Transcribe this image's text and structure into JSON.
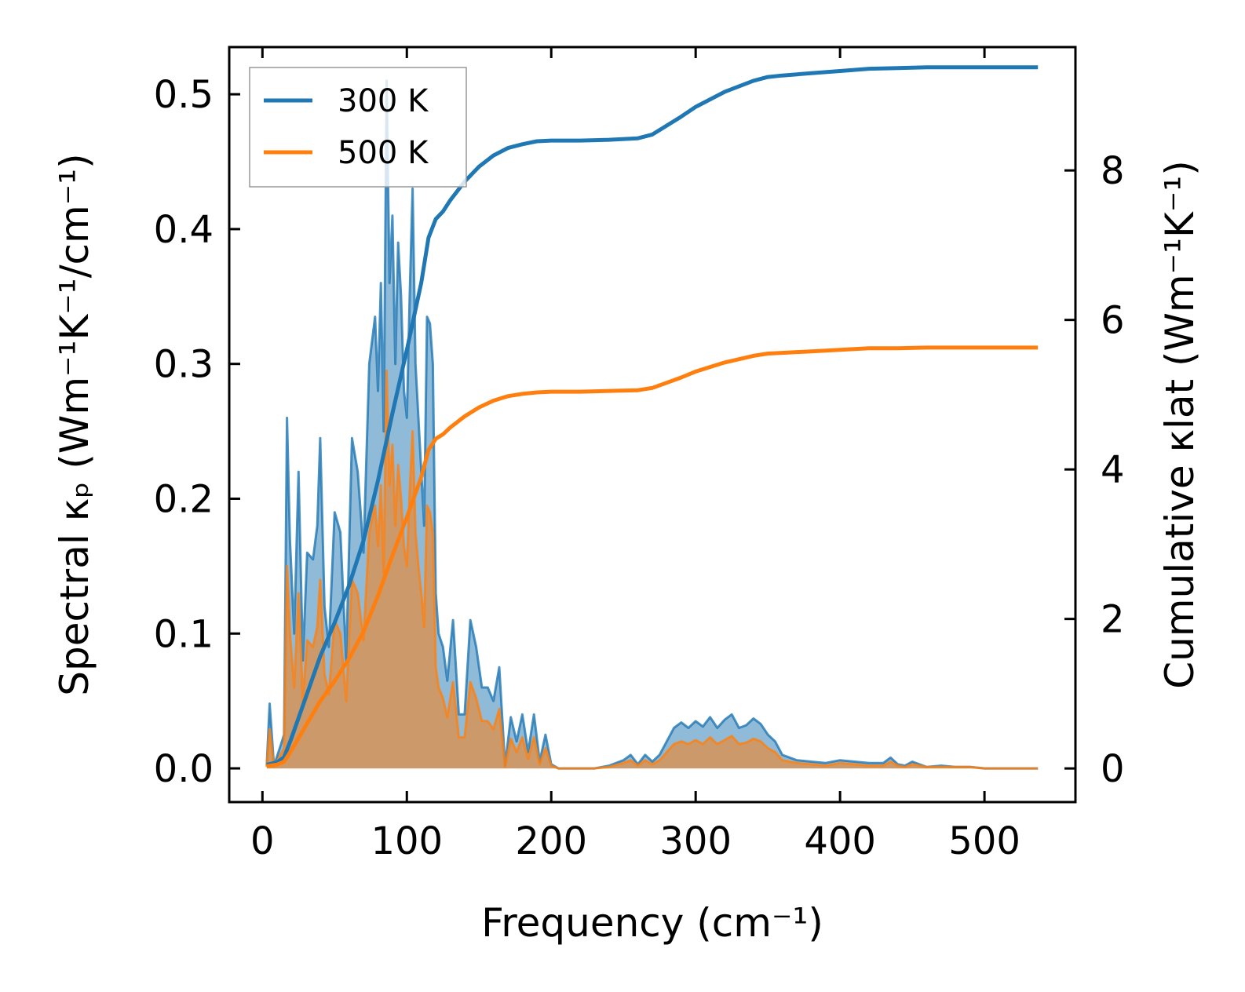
{
  "chart_data": {
    "type": "line",
    "xlabel": "Frequency (cm⁻¹)",
    "ylabel_left": "Spectral κₚ (Wm⁻¹K⁻¹/cm⁻¹)",
    "ylabel_right": "Cumulative κlat (Wm⁻¹K⁻¹)",
    "xlim": [
      -23,
      563
    ],
    "ylim_left": [
      -0.025,
      0.535
    ],
    "ylim_right": [
      -0.45,
      9.65
    ],
    "x_ticks": [
      0,
      100,
      200,
      300,
      400,
      500
    ],
    "x_tick_labels": [
      "0",
      "100",
      "200",
      "300",
      "400",
      "500"
    ],
    "y_left_ticks": [
      0.0,
      0.1,
      0.2,
      0.3,
      0.4,
      0.5
    ],
    "y_left_tick_labels": [
      "0.0",
      "0.1",
      "0.2",
      "0.3",
      "0.4",
      "0.5"
    ],
    "y_right_ticks": [
      0,
      2,
      4,
      6,
      8
    ],
    "y_right_tick_labels": [
      "0",
      "2",
      "4",
      "6",
      "8"
    ],
    "legend": {
      "position": "upper-left",
      "entries": [
        {
          "label": "300 K",
          "color": "#1f77b4"
        },
        {
          "label": "500 K",
          "color": "#ff7f0e"
        }
      ]
    },
    "series": [
      {
        "name": "300 K",
        "color": "#1f77b4",
        "spectral": {
          "x": [
            3,
            5,
            8,
            12,
            15,
            17,
            19,
            22,
            25,
            28,
            31,
            35,
            38,
            40,
            43,
            46,
            50,
            54,
            58,
            62,
            66,
            70,
            74,
            78,
            80,
            82,
            84,
            86,
            88,
            90,
            92,
            94,
            96,
            98,
            100,
            102,
            104,
            106,
            108,
            110,
            112,
            114,
            116,
            118,
            120,
            122,
            125,
            128,
            132,
            136,
            140,
            144,
            148,
            152,
            156,
            160,
            164,
            168,
            172,
            176,
            180,
            184,
            188,
            192,
            196,
            200,
            205,
            210,
            220,
            230,
            240,
            250,
            255,
            260,
            265,
            270,
            275,
            280,
            285,
            290,
            295,
            300,
            305,
            310,
            315,
            320,
            325,
            330,
            335,
            340,
            345,
            350,
            355,
            360,
            365,
            370,
            380,
            390,
            400,
            410,
            420,
            430,
            435,
            440,
            445,
            450,
            460,
            470,
            480,
            490,
            500,
            510,
            520,
            530,
            537
          ],
          "y": [
            0.002,
            0.048,
            0.002,
            0.015,
            0.025,
            0.26,
            0.17,
            0.1,
            0.22,
            0.08,
            0.16,
            0.155,
            0.18,
            0.245,
            0.12,
            0.09,
            0.19,
            0.175,
            0.08,
            0.245,
            0.22,
            0.16,
            0.3,
            0.335,
            0.28,
            0.36,
            0.25,
            0.51,
            0.36,
            0.41,
            0.3,
            0.39,
            0.35,
            0.28,
            0.26,
            0.35,
            0.43,
            0.3,
            0.26,
            0.22,
            0.18,
            0.335,
            0.33,
            0.3,
            0.13,
            0.1,
            0.09,
            0.065,
            0.11,
            0.04,
            0.04,
            0.11,
            0.09,
            0.06,
            0.06,
            0.05,
            0.075,
            0.002,
            0.038,
            0.02,
            0.04,
            0.012,
            0.04,
            0.005,
            0.025,
            0.003,
            0.0,
            0.0,
            0.0,
            0.0,
            0.002,
            0.006,
            0.01,
            0.003,
            0.01,
            0.005,
            0.01,
            0.02,
            0.03,
            0.034,
            0.03,
            0.035,
            0.031,
            0.038,
            0.03,
            0.036,
            0.04,
            0.03,
            0.032,
            0.037,
            0.033,
            0.025,
            0.02,
            0.01,
            0.008,
            0.006,
            0.005,
            0.004,
            0.006,
            0.005,
            0.004,
            0.004,
            0.008,
            0.003,
            0.002,
            0.005,
            0.001,
            0.002,
            0.001,
            0.001,
            0.0,
            0.0,
            0.0,
            0.0,
            0.0
          ]
        },
        "cumulative": {
          "x": [
            3,
            10,
            15,
            20,
            30,
            40,
            50,
            60,
            70,
            80,
            90,
            100,
            110,
            115,
            120,
            125,
            130,
            140,
            150,
            160,
            170,
            180,
            190,
            200,
            220,
            240,
            260,
            270,
            280,
            290,
            300,
            320,
            340,
            350,
            360,
            380,
            400,
            420,
            440,
            460,
            480,
            500,
            537
          ],
          "y": [
            0.05,
            0.08,
            0.15,
            0.4,
            0.95,
            1.5,
            1.95,
            2.45,
            3.05,
            3.85,
            4.75,
            5.6,
            6.5,
            7.1,
            7.35,
            7.45,
            7.6,
            7.85,
            8.05,
            8.2,
            8.3,
            8.35,
            8.39,
            8.4,
            8.4,
            8.41,
            8.43,
            8.48,
            8.6,
            8.72,
            8.85,
            9.05,
            9.2,
            9.25,
            9.27,
            9.3,
            9.33,
            9.36,
            9.37,
            9.38,
            9.38,
            9.38,
            9.38
          ]
        }
      },
      {
        "name": "500 K",
        "color": "#ff7f0e",
        "spectral": {
          "x": [
            3,
            5,
            8,
            12,
            15,
            17,
            19,
            22,
            25,
            28,
            31,
            35,
            38,
            40,
            43,
            46,
            50,
            54,
            58,
            62,
            66,
            70,
            74,
            78,
            80,
            82,
            84,
            86,
            88,
            90,
            92,
            94,
            96,
            98,
            100,
            102,
            104,
            106,
            108,
            110,
            112,
            114,
            116,
            118,
            120,
            122,
            125,
            128,
            132,
            136,
            140,
            144,
            148,
            152,
            156,
            160,
            164,
            168,
            172,
            176,
            180,
            184,
            188,
            192,
            196,
            200,
            205,
            210,
            220,
            230,
            240,
            250,
            255,
            260,
            265,
            270,
            275,
            280,
            285,
            290,
            295,
            300,
            305,
            310,
            315,
            320,
            325,
            330,
            335,
            340,
            345,
            350,
            355,
            360,
            365,
            370,
            380,
            390,
            400,
            410,
            420,
            430,
            435,
            440,
            445,
            450,
            460,
            470,
            480,
            490,
            500,
            510,
            520,
            530,
            537
          ],
          "y": [
            0.001,
            0.029,
            0.001,
            0.009,
            0.015,
            0.15,
            0.1,
            0.06,
            0.13,
            0.05,
            0.095,
            0.09,
            0.105,
            0.14,
            0.07,
            0.055,
            0.11,
            0.1,
            0.05,
            0.14,
            0.13,
            0.095,
            0.175,
            0.195,
            0.165,
            0.21,
            0.145,
            0.295,
            0.21,
            0.24,
            0.18,
            0.225,
            0.2,
            0.165,
            0.15,
            0.205,
            0.25,
            0.175,
            0.15,
            0.13,
            0.105,
            0.195,
            0.19,
            0.175,
            0.075,
            0.06,
            0.052,
            0.038,
            0.064,
            0.023,
            0.023,
            0.064,
            0.052,
            0.035,
            0.035,
            0.029,
            0.044,
            0.001,
            0.022,
            0.012,
            0.023,
            0.007,
            0.023,
            0.003,
            0.015,
            0.002,
            0.0,
            0.0,
            0.0,
            0.0,
            0.001,
            0.004,
            0.006,
            0.002,
            0.006,
            0.003,
            0.006,
            0.012,
            0.018,
            0.02,
            0.018,
            0.021,
            0.018,
            0.023,
            0.018,
            0.021,
            0.024,
            0.018,
            0.019,
            0.022,
            0.02,
            0.015,
            0.012,
            0.006,
            0.005,
            0.004,
            0.003,
            0.002,
            0.004,
            0.003,
            0.002,
            0.002,
            0.005,
            0.002,
            0.001,
            0.003,
            0.001,
            0.001,
            0.001,
            0.001,
            0.0,
            0.0,
            0.0,
            0.0,
            0.0
          ]
        },
        "cumulative": {
          "x": [
            3,
            10,
            15,
            20,
            30,
            40,
            50,
            60,
            70,
            80,
            90,
            100,
            110,
            115,
            120,
            125,
            130,
            140,
            150,
            160,
            170,
            180,
            190,
            200,
            220,
            240,
            260,
            270,
            280,
            290,
            300,
            320,
            340,
            350,
            360,
            380,
            400,
            420,
            440,
            460,
            480,
            500,
            537
          ],
          "y": [
            0.03,
            0.05,
            0.09,
            0.24,
            0.57,
            0.9,
            1.17,
            1.47,
            1.83,
            2.31,
            2.85,
            3.36,
            3.9,
            4.26,
            4.41,
            4.47,
            4.56,
            4.71,
            4.83,
            4.92,
            4.98,
            5.01,
            5.03,
            5.04,
            5.04,
            5.05,
            5.06,
            5.09,
            5.16,
            5.23,
            5.31,
            5.43,
            5.52,
            5.55,
            5.56,
            5.58,
            5.6,
            5.62,
            5.62,
            5.63,
            5.63,
            5.63,
            5.63
          ]
        }
      }
    ]
  }
}
